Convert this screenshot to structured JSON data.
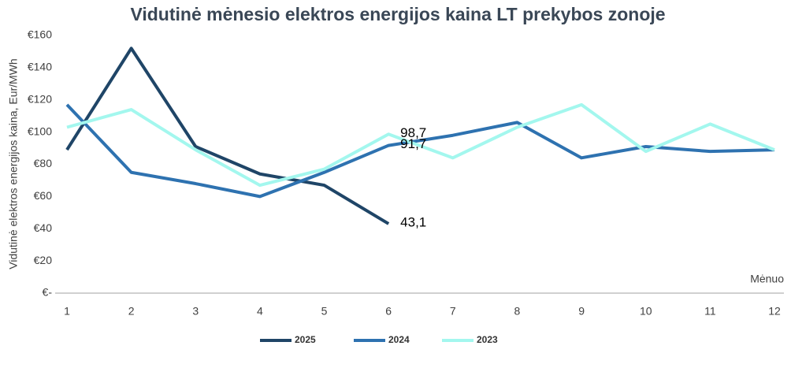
{
  "chart_data": {
    "type": "line",
    "title": "Vidutinė mėnesio elektros energijos kaina LT prekybos zonoje",
    "y_label": "Vidutinė elektros energijos kaina, Eur/MWh",
    "x_label": "Mėnuo",
    "categories": [
      "1",
      "2",
      "3",
      "4",
      "5",
      "6",
      "7",
      "8",
      "9",
      "10",
      "11",
      "12"
    ],
    "ylim": [
      0,
      160
    ],
    "yticks": [
      {
        "value": 0,
        "label": "€-"
      },
      {
        "value": 20,
        "label": "€20"
      },
      {
        "value": 40,
        "label": "€40"
      },
      {
        "value": 60,
        "label": "€60"
      },
      {
        "value": 80,
        "label": "€80"
      },
      {
        "value": 100,
        "label": "€100"
      },
      {
        "value": 120,
        "label": "€120"
      },
      {
        "value": 140,
        "label": "€140"
      },
      {
        "value": 160,
        "label": "€160"
      }
    ],
    "grid": false,
    "legend": "bottom",
    "series": [
      {
        "name": "2025",
        "color": "#1f4567",
        "values": [
          89,
          152,
          91,
          74,
          67,
          43.1,
          null,
          null,
          null,
          null,
          null,
          null
        ],
        "value_labels": [
          null,
          null,
          null,
          null,
          null,
          "43,1",
          null,
          null,
          null,
          null,
          null,
          null
        ]
      },
      {
        "name": "2024",
        "color": "#2e72b0",
        "values": [
          117,
          75,
          68,
          60,
          75,
          91.7,
          98,
          106,
          84,
          91,
          88,
          89
        ],
        "value_labels": [
          null,
          null,
          null,
          null,
          null,
          "91,7",
          null,
          null,
          null,
          null,
          null,
          null
        ]
      },
      {
        "name": "2023",
        "color": "#a3f7ee",
        "values": [
          103,
          114,
          89,
          67,
          77,
          98.7,
          84,
          103,
          117,
          88,
          105,
          89
        ],
        "value_labels": [
          null,
          null,
          null,
          null,
          null,
          "98,7",
          null,
          null,
          null,
          null,
          null,
          null
        ]
      }
    ]
  }
}
